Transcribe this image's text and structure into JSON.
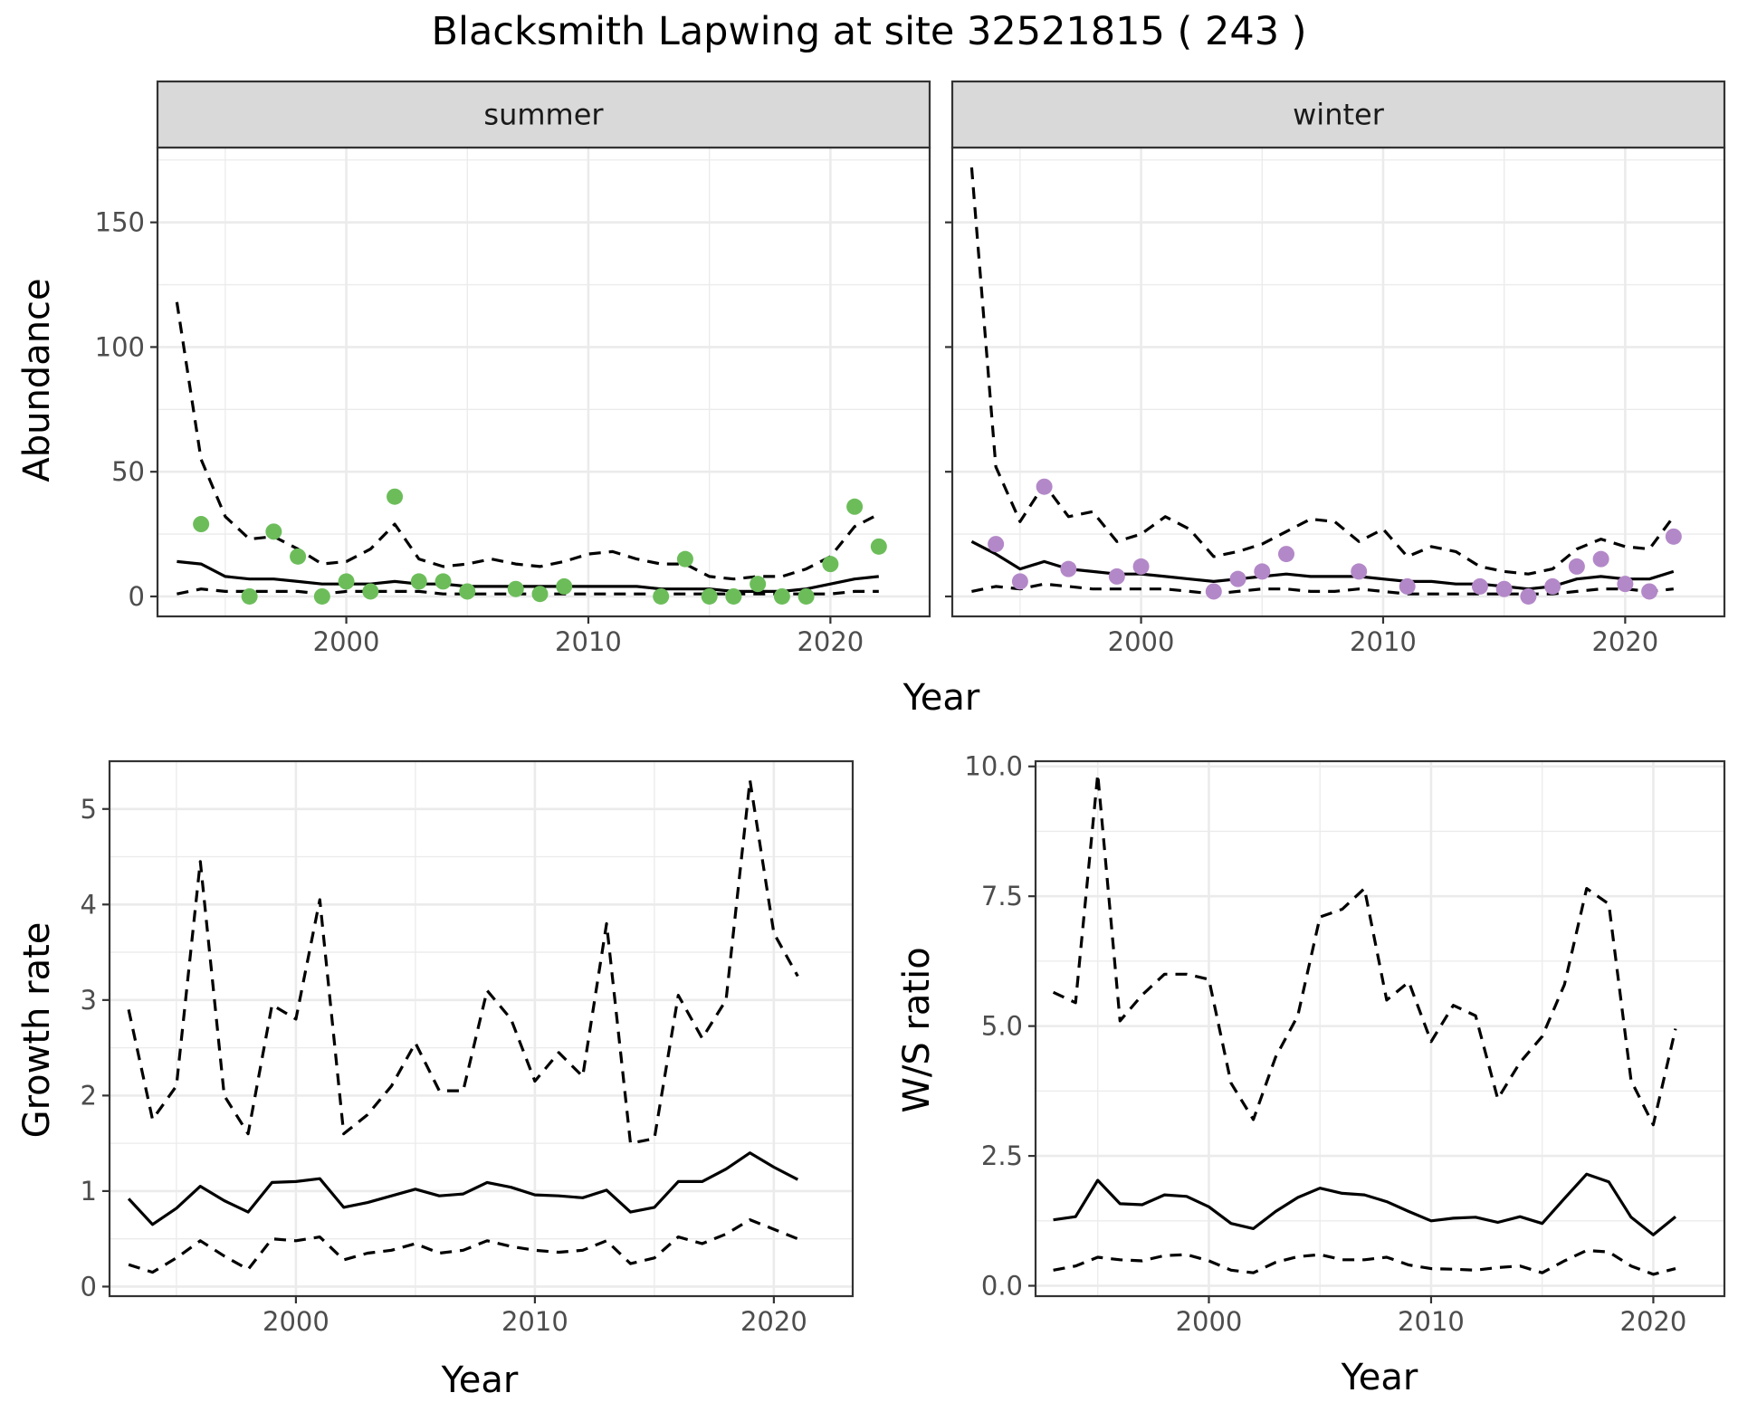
{
  "title": "Blacksmith Lapwing at site 32521815 ( 243 )",
  "colors": {
    "summer_points": "#6cbd5a",
    "winter_points": "#b388c8",
    "line": "#000000",
    "strip_fill": "#d9d9d9",
    "grid": "#ebebeb"
  },
  "chart_data": [
    {
      "type": "line",
      "panel": "summer",
      "strip_label": "summer",
      "xlabel": "Year",
      "ylabel": "Abundance",
      "xlim": [
        1992.2,
        2024.1
      ],
      "ylim": [
        -8,
        180
      ],
      "x_ticks": [
        2000,
        2010,
        2020
      ],
      "y_ticks": [
        0,
        50,
        100,
        150
      ],
      "series": [
        {
          "role": "upper",
          "style": "dashed",
          "x": [
            1993,
            1994,
            1995,
            1996,
            1997,
            1998,
            1999,
            2000,
            2001,
            2002,
            2003,
            2004,
            2005,
            2006,
            2007,
            2008,
            2009,
            2010,
            2011,
            2012,
            2013,
            2014,
            2015,
            2016,
            2017,
            2018,
            2019,
            2020,
            2021,
            2022
          ],
          "y": [
            118,
            55,
            32,
            23,
            24,
            19,
            13,
            14,
            19,
            29,
            15,
            12,
            13,
            15,
            13,
            12,
            14,
            17,
            18,
            15,
            13,
            13,
            8,
            7,
            8,
            8,
            11,
            16,
            28,
            33
          ]
        },
        {
          "role": "fit",
          "style": "solid",
          "x": [
            1993,
            1994,
            1995,
            1996,
            1997,
            1998,
            1999,
            2000,
            2001,
            2002,
            2003,
            2004,
            2005,
            2006,
            2007,
            2008,
            2009,
            2010,
            2011,
            2012,
            2013,
            2014,
            2015,
            2016,
            2017,
            2018,
            2019,
            2020,
            2021,
            2022
          ],
          "y": [
            14,
            13,
            8,
            7,
            7,
            6,
            5,
            5,
            5,
            6,
            5,
            5,
            4,
            4,
            4,
            4,
            4,
            4,
            4,
            4,
            3,
            3,
            3,
            2,
            2,
            2,
            3,
            5,
            7,
            8
          ]
        },
        {
          "role": "lower",
          "style": "dashed",
          "x": [
            1993,
            1994,
            1995,
            1996,
            1997,
            1998,
            1999,
            2000,
            2001,
            2002,
            2003,
            2004,
            2005,
            2006,
            2007,
            2008,
            2009,
            2010,
            2011,
            2012,
            2013,
            2014,
            2015,
            2016,
            2017,
            2018,
            2019,
            2020,
            2021,
            2022
          ],
          "y": [
            1,
            3,
            2,
            2,
            2,
            2,
            1,
            2,
            2,
            2,
            2,
            1,
            1,
            1,
            1,
            1,
            1,
            1,
            1,
            1,
            1,
            1,
            1,
            1,
            1,
            1,
            1,
            1,
            2,
            2
          ]
        }
      ],
      "points": {
        "x": [
          1994,
          1996,
          1997,
          1998,
          1999,
          2000,
          2001,
          2002,
          2003,
          2004,
          2005,
          2007,
          2008,
          2009,
          2013,
          2014,
          2015,
          2016,
          2017,
          2018,
          2019,
          2020,
          2021,
          2022
        ],
        "y": [
          29,
          0,
          26,
          16,
          0,
          6,
          2,
          40,
          6,
          6,
          2,
          3,
          1,
          4,
          0,
          15,
          0,
          0,
          5,
          0,
          0,
          13,
          36,
          20
        ]
      }
    },
    {
      "type": "line",
      "panel": "winter",
      "strip_label": "winter",
      "xlabel": "Year",
      "ylabel": "Abundance",
      "xlim": [
        1992.2,
        2024.1
      ],
      "ylim": [
        -8,
        180
      ],
      "x_ticks": [
        2000,
        2010,
        2020
      ],
      "y_ticks": [
        0,
        50,
        100,
        150
      ],
      "series": [
        {
          "role": "upper",
          "style": "dashed",
          "x": [
            1993,
            1994,
            1995,
            1996,
            1997,
            1998,
            1999,
            2000,
            2001,
            2002,
            2003,
            2004,
            2005,
            2006,
            2007,
            2008,
            2009,
            2010,
            2011,
            2012,
            2013,
            2014,
            2015,
            2016,
            2017,
            2018,
            2019,
            2020,
            2021,
            2022
          ],
          "y": [
            172,
            52,
            30,
            45,
            32,
            34,
            22,
            25,
            32,
            27,
            16,
            18,
            21,
            26,
            31,
            30,
            22,
            27,
            16,
            20,
            18,
            12,
            10,
            9,
            11,
            19,
            23,
            20,
            19,
            32
          ]
        },
        {
          "role": "fit",
          "style": "solid",
          "x": [
            1993,
            1994,
            1995,
            1996,
            1997,
            1998,
            1999,
            2000,
            2001,
            2002,
            2003,
            2004,
            2005,
            2006,
            2007,
            2008,
            2009,
            2010,
            2011,
            2012,
            2013,
            2014,
            2015,
            2016,
            2017,
            2018,
            2019,
            2020,
            2021,
            2022
          ],
          "y": [
            22,
            17,
            11,
            14,
            11,
            10,
            9,
            9,
            8,
            7,
            6,
            7,
            8,
            9,
            8,
            8,
            8,
            7,
            6,
            6,
            5,
            5,
            4,
            3,
            4,
            7,
            8,
            7,
            7,
            10
          ]
        },
        {
          "role": "lower",
          "style": "dashed",
          "x": [
            1993,
            1994,
            1995,
            1996,
            1997,
            1998,
            1999,
            2000,
            2001,
            2002,
            2003,
            2004,
            2005,
            2006,
            2007,
            2008,
            2009,
            2010,
            2011,
            2012,
            2013,
            2014,
            2015,
            2016,
            2017,
            2018,
            2019,
            2020,
            2021,
            2022
          ],
          "y": [
            2,
            4,
            3,
            5,
            4,
            3,
            3,
            3,
            3,
            2,
            1,
            2,
            3,
            3,
            2,
            2,
            3,
            2,
            1,
            1,
            1,
            1,
            1,
            1,
            1,
            2,
            3,
            3,
            2,
            3
          ]
        }
      ],
      "points": {
        "x": [
          1994,
          1995,
          1996,
          1997,
          1999,
          2000,
          2003,
          2004,
          2005,
          2006,
          2009,
          2011,
          2014,
          2015,
          2016,
          2017,
          2018,
          2019,
          2020,
          2021,
          2022
        ],
        "y": [
          21,
          6,
          44,
          11,
          8,
          12,
          2,
          7,
          10,
          17,
          10,
          4,
          4,
          3,
          0,
          4,
          12,
          15,
          5,
          2,
          24
        ]
      }
    },
    {
      "type": "line",
      "panel": "growth",
      "xlabel": "Year",
      "ylabel": "Growth rate",
      "xlim": [
        1992.2,
        2023.3
      ],
      "ylim": [
        -0.1,
        5.5
      ],
      "x_ticks": [
        2000,
        2010,
        2020
      ],
      "y_ticks": [
        0,
        1,
        2,
        3,
        4,
        5
      ],
      "series": [
        {
          "role": "upper",
          "style": "dashed",
          "x": [
            1993,
            1994,
            1995,
            1996,
            1997,
            1998,
            1999,
            2000,
            2001,
            2002,
            2003,
            2004,
            2005,
            2006,
            2007,
            2008,
            2009,
            2010,
            2011,
            2012,
            2013,
            2014,
            2015,
            2016,
            2017,
            2018,
            2019,
            2020,
            2021
          ],
          "y": [
            2.9,
            1.75,
            2.1,
            4.45,
            2.0,
            1.6,
            2.95,
            2.8,
            4.05,
            1.6,
            1.8,
            2.1,
            2.55,
            2.05,
            2.05,
            3.1,
            2.8,
            2.15,
            2.45,
            2.2,
            3.8,
            1.5,
            1.55,
            3.05,
            2.6,
            3.0,
            5.3,
            3.7,
            3.25
          ]
        },
        {
          "role": "fit",
          "style": "solid",
          "x": [
            1993,
            1994,
            1995,
            1996,
            1997,
            1998,
            1999,
            2000,
            2001,
            2002,
            2003,
            2004,
            2005,
            2006,
            2007,
            2008,
            2009,
            2010,
            2011,
            2012,
            2013,
            2014,
            2015,
            2016,
            2017,
            2018,
            2019,
            2020,
            2021
          ],
          "y": [
            0.92,
            0.65,
            0.82,
            1.05,
            0.9,
            0.78,
            1.09,
            1.1,
            1.13,
            0.83,
            0.88,
            0.95,
            1.02,
            0.95,
            0.97,
            1.09,
            1.04,
            0.96,
            0.95,
            0.93,
            1.01,
            0.78,
            0.83,
            1.1,
            1.1,
            1.23,
            1.4,
            1.25,
            1.12
          ]
        },
        {
          "role": "lower",
          "style": "dashed",
          "x": [
            1993,
            1994,
            1995,
            1996,
            1997,
            1998,
            1999,
            2000,
            2001,
            2002,
            2003,
            2004,
            2005,
            2006,
            2007,
            2008,
            2009,
            2010,
            2011,
            2012,
            2013,
            2014,
            2015,
            2016,
            2017,
            2018,
            2019,
            2020,
            2021
          ],
          "y": [
            0.23,
            0.15,
            0.3,
            0.48,
            0.32,
            0.18,
            0.5,
            0.48,
            0.52,
            0.28,
            0.35,
            0.38,
            0.45,
            0.35,
            0.38,
            0.48,
            0.42,
            0.38,
            0.36,
            0.38,
            0.48,
            0.24,
            0.3,
            0.52,
            0.45,
            0.55,
            0.7,
            0.6,
            0.5
          ]
        }
      ]
    },
    {
      "type": "line",
      "panel": "ratio",
      "xlabel": "Year",
      "ylabel": "W/S ratio",
      "xlim": [
        1992.2,
        2023.2
      ],
      "ylim": [
        -0.2,
        10.1
      ],
      "x_ticks": [
        2000,
        2010,
        2020
      ],
      "y_ticks": [
        0.0,
        2.5,
        5.0,
        7.5,
        10.0
      ],
      "y_tick_labels": [
        "0.0",
        "2.5",
        "5.0",
        "7.5",
        "10.0"
      ],
      "series": [
        {
          "role": "upper",
          "style": "dashed",
          "x": [
            1993,
            1994,
            1995,
            1996,
            1997,
            1998,
            1999,
            2000,
            2001,
            2002,
            2003,
            2004,
            2005,
            2006,
            2007,
            2008,
            2009,
            2010,
            2011,
            2012,
            2013,
            2014,
            2015,
            2016,
            2017,
            2018,
            2019,
            2020,
            2021
          ],
          "y": [
            5.65,
            5.45,
            9.85,
            5.1,
            5.6,
            6.0,
            6.0,
            5.9,
            3.9,
            3.2,
            4.4,
            5.2,
            7.1,
            7.25,
            7.65,
            5.5,
            5.85,
            4.7,
            5.4,
            5.2,
            3.6,
            4.3,
            4.8,
            5.8,
            7.65,
            7.35,
            3.95,
            3.1,
            4.95
          ]
        },
        {
          "role": "fit",
          "style": "solid",
          "x": [
            1993,
            1994,
            1995,
            1996,
            1997,
            1998,
            1999,
            2000,
            2001,
            2002,
            2003,
            2004,
            2005,
            2006,
            2007,
            2008,
            2009,
            2010,
            2011,
            2012,
            2013,
            2014,
            2015,
            2016,
            2017,
            2018,
            2019,
            2020,
            2021
          ],
          "y": [
            1.27,
            1.33,
            2.03,
            1.58,
            1.56,
            1.75,
            1.72,
            1.52,
            1.2,
            1.1,
            1.43,
            1.7,
            1.88,
            1.78,
            1.75,
            1.62,
            1.43,
            1.25,
            1.3,
            1.32,
            1.22,
            1.33,
            1.2,
            1.68,
            2.15,
            2.0,
            1.32,
            0.98,
            1.33
          ]
        },
        {
          "role": "lower",
          "style": "dashed",
          "x": [
            1993,
            1994,
            1995,
            1996,
            1997,
            1998,
            1999,
            2000,
            2001,
            2002,
            2003,
            2004,
            2005,
            2006,
            2007,
            2008,
            2009,
            2010,
            2011,
            2012,
            2013,
            2014,
            2015,
            2016,
            2017,
            2018,
            2019,
            2020,
            2021
          ],
          "y": [
            0.3,
            0.38,
            0.55,
            0.5,
            0.48,
            0.58,
            0.6,
            0.48,
            0.3,
            0.25,
            0.45,
            0.56,
            0.6,
            0.5,
            0.5,
            0.55,
            0.4,
            0.33,
            0.32,
            0.3,
            0.35,
            0.38,
            0.25,
            0.48,
            0.68,
            0.65,
            0.38,
            0.22,
            0.33
          ]
        }
      ]
    }
  ]
}
